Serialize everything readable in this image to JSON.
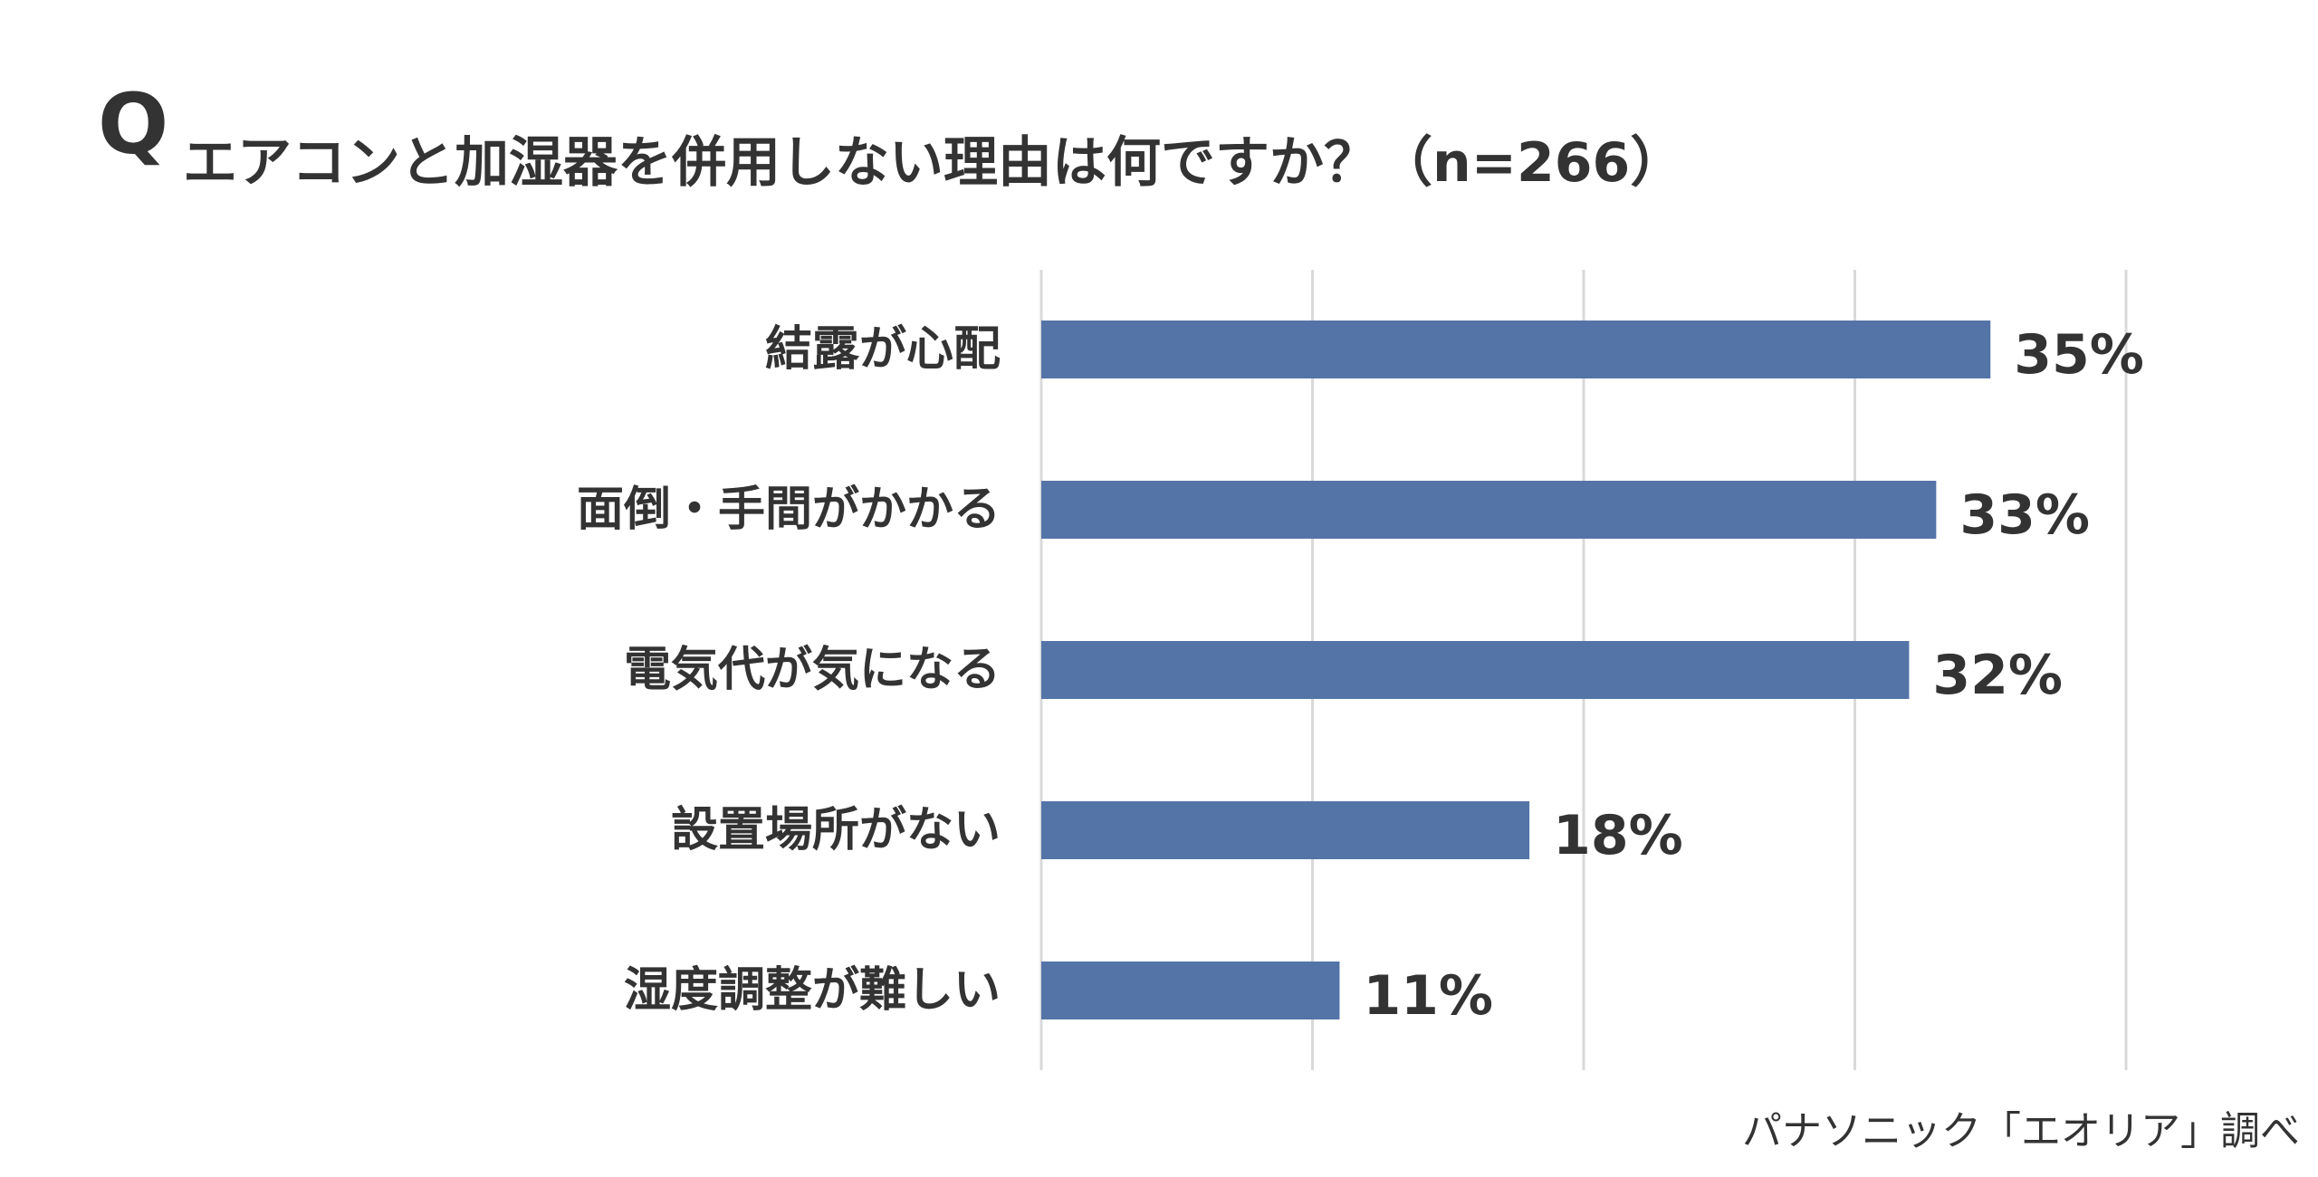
{
  "question_mark": "Q",
  "question": "エアコンと加湿器を併用しない理由は何ですか？（n=266）",
  "source": "パナソニック「エオリア」調べ",
  "colors": {
    "bar": "#5474A8",
    "grid": "#D9D9D9",
    "text": "#333333"
  },
  "chart_data": {
    "type": "bar",
    "orientation": "horizontal",
    "categories": [
      "結露が心配",
      "面倒・手間がかかる",
      "電気代が気になる",
      "設置場所がない",
      "湿度調整が難しい"
    ],
    "values": [
      35,
      33,
      32,
      18,
      11
    ],
    "value_labels": [
      "35%",
      "33%",
      "32%",
      "18%",
      "11%"
    ],
    "xlim": [
      0,
      40
    ],
    "grid": true
  }
}
